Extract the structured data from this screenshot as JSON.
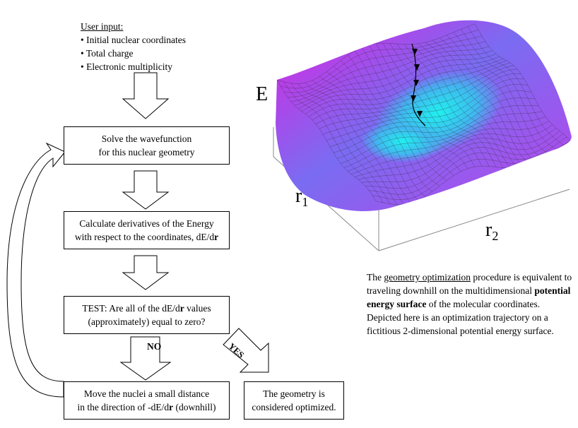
{
  "user_input": {
    "heading": "User input:",
    "items": [
      "• Initial nuclear coordinates",
      "• Total charge",
      "• Electronic multiplicity"
    ]
  },
  "steps": {
    "solve": {
      "line1": "Solve the wavefunction",
      "line2": "for this nuclear geometry"
    },
    "derivatives": {
      "line1": "Calculate derivatives of the Energy",
      "line2_text": "with respect to the coordinates, dE/d",
      "line2_bold": "r"
    },
    "test": {
      "line1_text": "TEST: Are all of the dE/d",
      "line1_bold": "r",
      "line1_end": " values",
      "line2": "(approximately) equal to zero?"
    },
    "move": {
      "line1": "Move the nuclei a small distance",
      "line2_text": "in the direction of -dE/d",
      "line2_bold": "r",
      "line2_end": " (downhill)"
    },
    "optimized": {
      "line1": "The geometry is",
      "line2": "considered optimized."
    }
  },
  "branches": {
    "no": "NO",
    "yes": "YES"
  },
  "surface": {
    "axis_e": "E",
    "axis_r1": "r",
    "axis_r1_sub": "1",
    "axis_r2": "r",
    "axis_r2_sub": "2",
    "colors": {
      "high": "#e020e0",
      "mid": "#8a5cf0",
      "low": "#20f0f0",
      "grid": "#2a2a2a"
    }
  },
  "caption": {
    "prefix": "The ",
    "link": "geometry optimization",
    "mid": " procedure is equivalent to traveling downhill on the multidimensional ",
    "bold": "potential energy surface",
    "suffix": " of the molecular coordinates. Depicted here is an optimization trajectory on a fictitious 2-dimensional potential energy surface."
  }
}
